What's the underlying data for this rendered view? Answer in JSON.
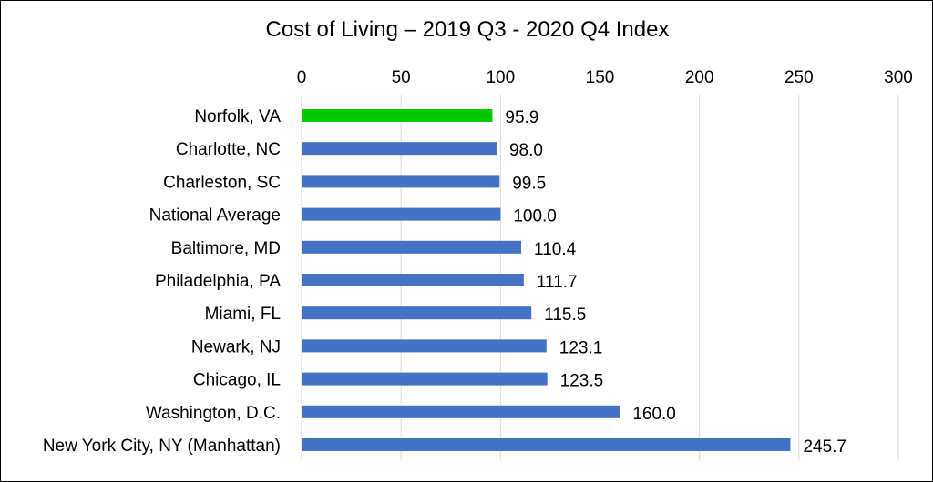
{
  "chart_data": {
    "type": "bar",
    "orientation": "horizontal",
    "title": "Cost of Living – 2019 Q3 - 2020 Q4 Index",
    "xlabel": "",
    "ylabel": "",
    "xlim": [
      0,
      300
    ],
    "x_ticks": [
      0,
      50,
      100,
      150,
      200,
      250,
      300
    ],
    "x_axis_position": "top",
    "grid": true,
    "legend": "none",
    "categories": [
      "Norfolk, VA",
      "Charlotte, NC",
      "Charleston, SC",
      "National Average",
      "Baltimore, MD",
      "Philadelphia, PA",
      "Miami, FL",
      "Newark, NJ",
      "Chicago, IL",
      "Washington, D.C.",
      "New York City, NY (Manhattan)"
    ],
    "values": [
      95.9,
      98.0,
      99.5,
      100.0,
      110.4,
      111.7,
      115.5,
      123.1,
      123.5,
      160.0,
      245.7
    ],
    "value_labels": [
      "95.9",
      "98.0",
      "99.5",
      "100.0",
      "110.4",
      "111.7",
      "115.5",
      "123.1",
      "123.5",
      "160.0",
      "245.7"
    ],
    "bar_colors": [
      "#00c800",
      "#4472c4",
      "#4472c4",
      "#4472c4",
      "#4472c4",
      "#4472c4",
      "#4472c4",
      "#4472c4",
      "#4472c4",
      "#4472c4",
      "#4472c4"
    ],
    "gridline_color": "#d9d9d9"
  }
}
